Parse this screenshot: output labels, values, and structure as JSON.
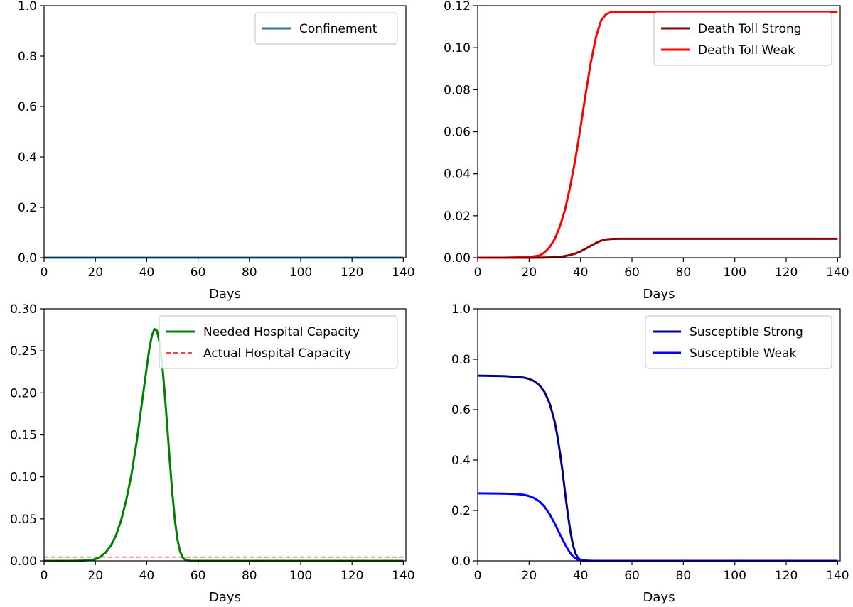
{
  "chart_data": [
    {
      "type": "line",
      "panel": "top-left",
      "xlabel": "Days",
      "ylabel": "",
      "xlim": [
        0,
        141
      ],
      "ylim": [
        0,
        1.0
      ],
      "xticks": [
        0,
        20,
        40,
        60,
        80,
        100,
        120,
        140
      ],
      "xtick_labels": [
        "0",
        "20",
        "40",
        "60",
        "80",
        "100",
        "120",
        "140"
      ],
      "yticks": [
        0,
        0.2,
        0.4,
        0.6,
        0.8,
        1.0
      ],
      "ytick_labels": [
        "0.0",
        "0.2",
        "0.4",
        "0.6",
        "0.8",
        "1.0"
      ],
      "legend_position": "top-right",
      "series": [
        {
          "name": "Confinement",
          "color": "#1f77b4",
          "style": "solid",
          "x": [
            0,
            20,
            40,
            60,
            80,
            100,
            120,
            140
          ],
          "y": [
            0,
            0,
            0,
            0,
            0,
            0,
            0,
            0
          ]
        }
      ]
    },
    {
      "type": "line",
      "panel": "top-right",
      "xlabel": "Days",
      "ylabel": "",
      "xlim": [
        0,
        141
      ],
      "ylim": [
        0,
        0.12
      ],
      "xticks": [
        0,
        20,
        40,
        60,
        80,
        100,
        120,
        140
      ],
      "xtick_labels": [
        "0",
        "20",
        "40",
        "60",
        "80",
        "100",
        "120",
        "140"
      ],
      "yticks": [
        0,
        0.02,
        0.04,
        0.06,
        0.08,
        0.1,
        0.12
      ],
      "ytick_labels": [
        "0.00",
        "0.02",
        "0.04",
        "0.06",
        "0.08",
        "0.10",
        "0.12"
      ],
      "legend_position": "top-right",
      "series": [
        {
          "name": "Death Toll Strong",
          "color": "#8b0000",
          "style": "solid",
          "x": [
            0,
            10,
            20,
            25,
            30,
            32,
            34,
            36,
            38,
            40,
            42,
            44,
            46,
            48,
            50,
            52,
            55,
            60,
            80,
            100,
            120,
            140
          ],
          "y": [
            0,
            0,
            0,
            5e-05,
            0.0002,
            0.0004,
            0.0008,
            0.0013,
            0.002,
            0.003,
            0.0043,
            0.0057,
            0.007,
            0.0081,
            0.0087,
            0.0089,
            0.009,
            0.009,
            0.009,
            0.009,
            0.009,
            0.009
          ]
        },
        {
          "name": "Death Toll Weak",
          "color": "#ff0000",
          "style": "solid",
          "x": [
            0,
            10,
            20,
            24,
            26,
            28,
            30,
            32,
            34,
            36,
            38,
            40,
            42,
            44,
            46,
            48,
            50,
            52,
            55,
            60,
            80,
            100,
            120,
            140
          ],
          "y": [
            0,
            0,
            0.0003,
            0.001,
            0.0025,
            0.005,
            0.009,
            0.015,
            0.023,
            0.034,
            0.047,
            0.062,
            0.078,
            0.093,
            0.105,
            0.113,
            0.116,
            0.117,
            0.117,
            0.117,
            0.117,
            0.117,
            0.117,
            0.117
          ]
        }
      ]
    },
    {
      "type": "line",
      "panel": "bottom-left",
      "xlabel": "Days",
      "ylabel": "",
      "xlim": [
        0,
        141
      ],
      "ylim": [
        0,
        0.3
      ],
      "xticks": [
        0,
        20,
        40,
        60,
        80,
        100,
        120,
        140
      ],
      "xtick_labels": [
        "0",
        "20",
        "40",
        "60",
        "80",
        "100",
        "120",
        "140"
      ],
      "yticks": [
        0,
        0.05,
        0.1,
        0.15,
        0.2,
        0.25,
        0.3
      ],
      "ytick_labels": [
        "0.00",
        "0.05",
        "0.10",
        "0.15",
        "0.20",
        "0.25",
        "0.30"
      ],
      "legend_position": "top-right",
      "series": [
        {
          "name": "Needed Hospital Capacity",
          "color": "#008000",
          "style": "solid",
          "x": [
            0,
            10,
            15,
            18,
            20,
            22,
            24,
            26,
            28,
            30,
            32,
            34,
            36,
            38,
            40,
            41,
            42,
            43,
            44,
            45,
            46,
            47,
            48,
            49,
            50,
            51,
            52,
            53,
            54,
            55,
            57,
            60,
            80,
            100,
            120,
            140
          ],
          "y": [
            0,
            0,
            0.0003,
            0.001,
            0.002,
            0.005,
            0.01,
            0.018,
            0.03,
            0.048,
            0.072,
            0.102,
            0.14,
            0.185,
            0.23,
            0.252,
            0.268,
            0.276,
            0.274,
            0.26,
            0.235,
            0.2,
            0.16,
            0.118,
            0.08,
            0.048,
            0.025,
            0.011,
            0.004,
            0.0012,
            0,
            0,
            0,
            0,
            0,
            0
          ]
        },
        {
          "name": "Actual Hospital Capacity",
          "color": "#ff0000",
          "style": "dashed",
          "x": [
            0,
            140
          ],
          "y": [
            0.0045,
            0.0045
          ]
        }
      ]
    },
    {
      "type": "line",
      "panel": "bottom-right",
      "xlabel": "Days",
      "ylabel": "",
      "xlim": [
        0,
        141
      ],
      "ylim": [
        0,
        1.0
      ],
      "xticks": [
        0,
        20,
        40,
        60,
        80,
        100,
        120,
        140
      ],
      "xtick_labels": [
        "0",
        "20",
        "40",
        "60",
        "80",
        "100",
        "120",
        "140"
      ],
      "yticks": [
        0,
        0.2,
        0.4,
        0.6,
        0.8,
        1.0
      ],
      "ytick_labels": [
        "0.0",
        "0.2",
        "0.4",
        "0.6",
        "0.8",
        "1.0"
      ],
      "legend_position": "top-right",
      "series": [
        {
          "name": "Susceptible Strong",
          "color": "#00008b",
          "style": "solid",
          "x": [
            0,
            10,
            15,
            18,
            20,
            22,
            24,
            26,
            28,
            30,
            31,
            32,
            33,
            34,
            35,
            36,
            37,
            38,
            39,
            40,
            42,
            45,
            60,
            80,
            100,
            120,
            140
          ],
          "y": [
            0.735,
            0.733,
            0.73,
            0.727,
            0.722,
            0.713,
            0.697,
            0.67,
            0.625,
            0.55,
            0.495,
            0.43,
            0.355,
            0.27,
            0.19,
            0.12,
            0.065,
            0.03,
            0.012,
            0.004,
            0.001,
            0,
            0,
            0,
            0,
            0,
            0
          ]
        },
        {
          "name": "Susceptible Weak",
          "color": "#0000ff",
          "style": "solid",
          "x": [
            0,
            10,
            15,
            18,
            20,
            22,
            24,
            26,
            28,
            30,
            32,
            34,
            35,
            36,
            37,
            38,
            39,
            40,
            42,
            45,
            60,
            80,
            100,
            120,
            140
          ],
          "y": [
            0.268,
            0.267,
            0.265,
            0.262,
            0.257,
            0.249,
            0.236,
            0.215,
            0.185,
            0.148,
            0.105,
            0.065,
            0.047,
            0.031,
            0.019,
            0.01,
            0.005,
            0.002,
            0.0005,
            0,
            0,
            0,
            0,
            0,
            0
          ]
        }
      ]
    }
  ]
}
